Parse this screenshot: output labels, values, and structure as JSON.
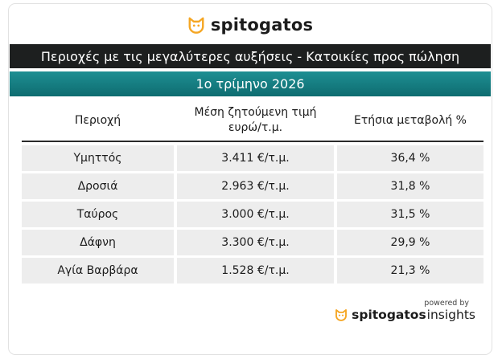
{
  "brand": {
    "name": "spitogatos",
    "icon": "cat-icon",
    "color": "#f5a623"
  },
  "banner": {
    "title": "Περιοχές με τις μεγαλύτερες αυξήσεις - Κατοικίες προς πώληση",
    "period": "1ο τρίμηνο 2026"
  },
  "table": {
    "headers": {
      "area": "Περιοχή",
      "price_line1": "Μέση ζητούμενη τιμή",
      "price_line2": "ευρώ/τ.μ.",
      "change": "Ετήσια μεταβολή %"
    },
    "rows": [
      {
        "area": "Υμηττός",
        "price": "3.411 €/τ.μ.",
        "change": "36,4 %"
      },
      {
        "area": "Δροσιά",
        "price": "2.963 €/τ.μ.",
        "change": "31,8 %"
      },
      {
        "area": "Ταύρος",
        "price": "3.000 €/τ.μ.",
        "change": "31,5 %"
      },
      {
        "area": "Δάφνη",
        "price": "3.300 €/τ.μ.",
        "change": "29,9 %"
      },
      {
        "area": "Αγία Βαρβάρα",
        "price": "1.528 €/τ.μ.",
        "change": "21,3 %"
      }
    ]
  },
  "footer": {
    "powered_by": "powered by",
    "brand_name": "spitogatos",
    "brand_suffix": "insights"
  },
  "colors": {
    "dark_banner": "#1d1f1f",
    "teal_banner": "#0e6c70",
    "row_bg": "#ededed"
  }
}
